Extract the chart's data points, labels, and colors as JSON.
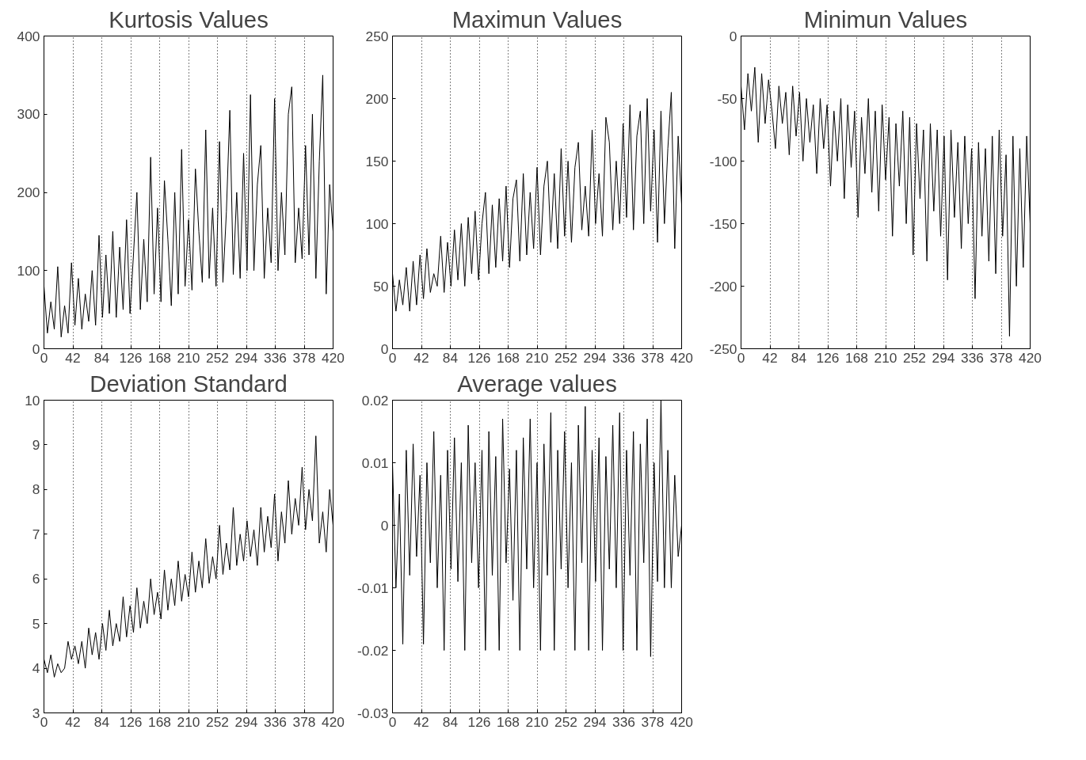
{
  "chart_data": [
    {
      "type": "line",
      "title": "Kurtosis Values",
      "x": [
        0,
        5,
        10,
        15,
        20,
        25,
        30,
        35,
        40,
        45,
        50,
        55,
        60,
        65,
        70,
        75,
        80,
        85,
        90,
        95,
        100,
        105,
        110,
        115,
        120,
        125,
        130,
        135,
        140,
        145,
        150,
        155,
        160,
        165,
        170,
        175,
        180,
        185,
        190,
        195,
        200,
        205,
        210,
        215,
        220,
        225,
        230,
        235,
        240,
        245,
        250,
        255,
        260,
        265,
        270,
        275,
        280,
        285,
        290,
        295,
        300,
        305,
        310,
        315,
        320,
        325,
        330,
        335,
        340,
        345,
        350,
        355,
        360,
        365,
        370,
        375,
        380,
        385,
        390,
        395,
        400,
        405,
        410,
        415,
        420
      ],
      "color": "#000000",
      "grid": "x",
      "xlim": [
        0,
        420
      ],
      "xticks": [
        0,
        42,
        84,
        126,
        168,
        210,
        252,
        294,
        336,
        378,
        420
      ],
      "ylim": [
        0,
        400
      ],
      "yticks": [
        0,
        100,
        200,
        300,
        400
      ],
      "values": [
        80,
        20,
        60,
        25,
        105,
        15,
        55,
        20,
        110,
        30,
        90,
        25,
        70,
        35,
        100,
        30,
        145,
        40,
        120,
        45,
        150,
        40,
        130,
        50,
        165,
        45,
        120,
        200,
        50,
        140,
        60,
        245,
        70,
        180,
        60,
        215,
        140,
        55,
        200,
        70,
        255,
        80,
        165,
        75,
        230,
        150,
        85,
        280,
        90,
        180,
        80,
        265,
        85,
        175,
        305,
        95,
        200,
        90,
        250,
        100,
        325,
        100,
        210,
        260,
        90,
        180,
        110,
        320,
        100,
        200,
        120,
        300,
        335,
        110,
        180,
        115,
        260,
        120,
        300,
        90,
        240,
        350,
        70,
        210,
        150
      ]
    },
    {
      "type": "line",
      "title": "Maximun Values",
      "x": [
        0,
        5,
        10,
        15,
        20,
        25,
        30,
        35,
        40,
        45,
        50,
        55,
        60,
        65,
        70,
        75,
        80,
        85,
        90,
        95,
        100,
        105,
        110,
        115,
        120,
        125,
        130,
        135,
        140,
        145,
        150,
        155,
        160,
        165,
        170,
        175,
        180,
        185,
        190,
        195,
        200,
        205,
        210,
        215,
        220,
        225,
        230,
        235,
        240,
        245,
        250,
        255,
        260,
        265,
        270,
        275,
        280,
        285,
        290,
        295,
        300,
        305,
        310,
        315,
        320,
        325,
        330,
        335,
        340,
        345,
        350,
        355,
        360,
        365,
        370,
        375,
        380,
        385,
        390,
        395,
        400,
        405,
        410,
        415,
        420
      ],
      "color": "#000000",
      "grid": "x",
      "xlim": [
        0,
        420
      ],
      "xticks": [
        0,
        42,
        84,
        126,
        168,
        210,
        252,
        294,
        336,
        378,
        420
      ],
      "ylim": [
        0,
        250
      ],
      "yticks": [
        0,
        50,
        100,
        150,
        200,
        250
      ],
      "values": [
        60,
        30,
        55,
        35,
        65,
        30,
        70,
        35,
        75,
        40,
        80,
        45,
        60,
        50,
        90,
        45,
        85,
        50,
        95,
        55,
        100,
        50,
        105,
        60,
        110,
        55,
        100,
        125,
        60,
        115,
        65,
        120,
        70,
        130,
        65,
        120,
        135,
        70,
        140,
        75,
        125,
        80,
        145,
        75,
        130,
        150,
        85,
        140,
        80,
        160,
        90,
        150,
        85,
        145,
        165,
        95,
        130,
        90,
        175,
        100,
        140,
        90,
        185,
        165,
        95,
        150,
        100,
        180,
        105,
        195,
        95,
        170,
        190,
        100,
        200,
        110,
        175,
        85,
        190,
        100,
        160,
        205,
        80,
        170,
        115
      ]
    },
    {
      "type": "line",
      "title": "Minimun Values",
      "x": [
        0,
        5,
        10,
        15,
        20,
        25,
        30,
        35,
        40,
        45,
        50,
        55,
        60,
        65,
        70,
        75,
        80,
        85,
        90,
        95,
        100,
        105,
        110,
        115,
        120,
        125,
        130,
        135,
        140,
        145,
        150,
        155,
        160,
        165,
        170,
        175,
        180,
        185,
        190,
        195,
        200,
        205,
        210,
        215,
        220,
        225,
        230,
        235,
        240,
        245,
        250,
        255,
        260,
        265,
        270,
        275,
        280,
        285,
        290,
        295,
        300,
        305,
        310,
        315,
        320,
        325,
        330,
        335,
        340,
        345,
        350,
        355,
        360,
        365,
        370,
        375,
        380,
        385,
        390,
        395,
        400,
        405,
        410,
        415,
        420
      ],
      "color": "#000000",
      "grid": "x",
      "xlim": [
        0,
        420
      ],
      "xticks": [
        0,
        42,
        84,
        126,
        168,
        210,
        252,
        294,
        336,
        378,
        420
      ],
      "ylim": [
        -250,
        0
      ],
      "yticks": [
        -250,
        -200,
        -150,
        -100,
        -50,
        0
      ],
      "values": [
        -40,
        -75,
        -30,
        -60,
        -25,
        -85,
        -30,
        -70,
        -35,
        -60,
        -90,
        -40,
        -70,
        -45,
        -95,
        -40,
        -80,
        -45,
        -100,
        -50,
        -85,
        -55,
        -110,
        -50,
        -90,
        -55,
        -120,
        -60,
        -100,
        -50,
        -130,
        -55,
        -105,
        -60,
        -145,
        -65,
        -110,
        -50,
        -125,
        -60,
        -140,
        -55,
        -115,
        -65,
        -160,
        -70,
        -120,
        -60,
        -150,
        -65,
        -175,
        -70,
        -130,
        -75,
        -180,
        -70,
        -140,
        -75,
        -160,
        -80,
        -195,
        -75,
        -145,
        -85,
        -170,
        -80,
        -150,
        -90,
        -210,
        -85,
        -160,
        -90,
        -180,
        -80,
        -190,
        -75,
        -160,
        -95,
        -240,
        -80,
        -200,
        -90,
        -185,
        -80,
        -150
      ]
    },
    {
      "type": "line",
      "title": "Deviation Standard",
      "x": [
        0,
        5,
        10,
        15,
        20,
        25,
        30,
        35,
        40,
        45,
        50,
        55,
        60,
        65,
        70,
        75,
        80,
        85,
        90,
        95,
        100,
        105,
        110,
        115,
        120,
        125,
        130,
        135,
        140,
        145,
        150,
        155,
        160,
        165,
        170,
        175,
        180,
        185,
        190,
        195,
        200,
        205,
        210,
        215,
        220,
        225,
        230,
        235,
        240,
        245,
        250,
        255,
        260,
        265,
        270,
        275,
        280,
        285,
        290,
        295,
        300,
        305,
        310,
        315,
        320,
        325,
        330,
        335,
        340,
        345,
        350,
        355,
        360,
        365,
        370,
        375,
        380,
        385,
        390,
        395,
        400,
        405,
        410,
        415,
        420
      ],
      "color": "#000000",
      "grid": "x",
      "xlim": [
        0,
        420
      ],
      "xticks": [
        0,
        42,
        84,
        126,
        168,
        210,
        252,
        294,
        336,
        378,
        420
      ],
      "ylim": [
        3,
        10
      ],
      "yticks": [
        3,
        4,
        5,
        6,
        7,
        8,
        9,
        10
      ],
      "values": [
        4.2,
        3.9,
        4.3,
        3.8,
        4.1,
        3.9,
        4.0,
        4.6,
        4.2,
        4.5,
        4.1,
        4.6,
        4.0,
        4.9,
        4.3,
        4.8,
        4.2,
        5.0,
        4.4,
        5.3,
        4.5,
        5.0,
        4.6,
        5.6,
        4.7,
        5.4,
        4.8,
        5.8,
        4.9,
        5.5,
        5.0,
        6.0,
        5.2,
        5.7,
        5.1,
        6.2,
        5.3,
        6.0,
        5.4,
        6.4,
        5.5,
        6.1,
        5.6,
        6.6,
        5.7,
        6.4,
        5.8,
        6.9,
        5.9,
        6.5,
        6.0,
        7.2,
        6.1,
        6.8,
        6.2,
        7.6,
        6.3,
        7.0,
        6.4,
        7.3,
        6.5,
        7.1,
        6.3,
        7.6,
        6.6,
        7.4,
        6.7,
        7.9,
        6.4,
        7.5,
        6.8,
        8.2,
        7.0,
        7.8,
        7.2,
        8.5,
        7.1,
        8.0,
        7.3,
        9.2,
        6.8,
        7.5,
        6.6,
        8.0,
        7.2
      ]
    },
    {
      "type": "line",
      "title": "Average values",
      "x": [
        0,
        5,
        10,
        15,
        20,
        25,
        30,
        35,
        40,
        45,
        50,
        55,
        60,
        65,
        70,
        75,
        80,
        85,
        90,
        95,
        100,
        105,
        110,
        115,
        120,
        125,
        130,
        135,
        140,
        145,
        150,
        155,
        160,
        165,
        170,
        175,
        180,
        185,
        190,
        195,
        200,
        205,
        210,
        215,
        220,
        225,
        230,
        235,
        240,
        245,
        250,
        255,
        260,
        265,
        270,
        275,
        280,
        285,
        290,
        295,
        300,
        305,
        310,
        315,
        320,
        325,
        330,
        335,
        340,
        345,
        350,
        355,
        360,
        365,
        370,
        375,
        380,
        385,
        390,
        395,
        400,
        405,
        410,
        415,
        420
      ],
      "color": "#000000",
      "grid": "x",
      "xlim": [
        0,
        420
      ],
      "xticks": [
        0,
        42,
        84,
        126,
        168,
        210,
        252,
        294,
        336,
        378,
        420
      ],
      "ylim": [
        -0.03,
        0.02
      ],
      "yticks": [
        -0.03,
        -0.02,
        -0.01,
        0,
        0.01,
        0.02
      ],
      "values": [
        0.01,
        -0.01,
        0.005,
        -0.019,
        0.012,
        -0.008,
        0.013,
        -0.005,
        0.008,
        -0.019,
        0.01,
        -0.006,
        0.015,
        -0.01,
        0.008,
        -0.02,
        0.012,
        -0.007,
        0.014,
        -0.009,
        0.01,
        -0.02,
        0.016,
        -0.006,
        0.01,
        -0.01,
        0.012,
        -0.02,
        0.015,
        -0.008,
        0.011,
        -0.02,
        0.017,
        -0.006,
        0.009,
        -0.012,
        0.012,
        -0.02,
        0.014,
        -0.007,
        0.017,
        -0.01,
        0.01,
        -0.02,
        0.013,
        -0.008,
        0.018,
        -0.02,
        0.012,
        -0.007,
        0.015,
        -0.01,
        0.01,
        -0.02,
        0.016,
        -0.006,
        0.019,
        -0.02,
        0.012,
        -0.009,
        0.014,
        -0.02,
        0.011,
        -0.007,
        0.016,
        -0.01,
        0.018,
        -0.02,
        0.012,
        -0.008,
        0.015,
        -0.02,
        0.013,
        -0.006,
        0.017,
        -0.021,
        0.01,
        -0.009,
        0.02,
        -0.01,
        0.012,
        -0.01,
        0.008,
        -0.005,
        0.0
      ]
    }
  ]
}
